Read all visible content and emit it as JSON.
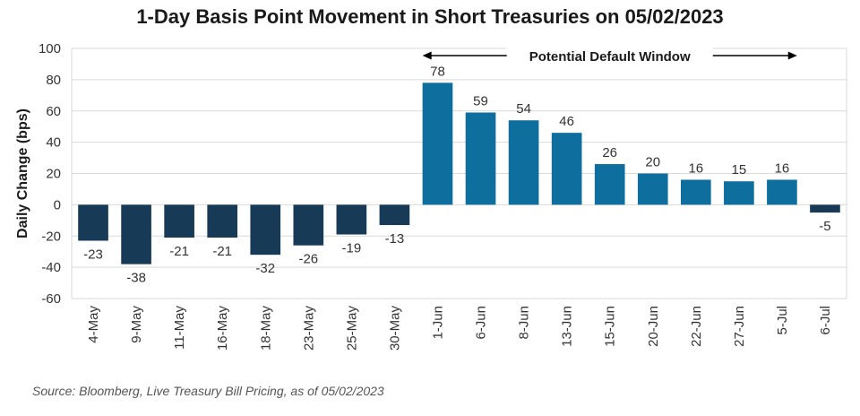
{
  "chart_data": {
    "type": "bar",
    "title": "1-Day Basis Point Movement in Short Treasuries on 05/02/2023",
    "xlabel": "",
    "ylabel": "Daily Change (bps)",
    "ylim": [
      -60,
      100
    ],
    "yticks": [
      100,
      80,
      60,
      40,
      20,
      0,
      -20,
      -40,
      -60
    ],
    "grid": true,
    "categories": [
      "4-May",
      "9-May",
      "11-May",
      "16-May",
      "18-May",
      "23-May",
      "25-May",
      "30-May",
      "1-Jun",
      "6-Jun",
      "8-Jun",
      "13-Jun",
      "15-Jun",
      "20-Jun",
      "22-Jun",
      "27-Jun",
      "5-Jul",
      "6-Jul"
    ],
    "values": [
      -23,
      -38,
      -21,
      -21,
      -32,
      -26,
      -19,
      -13,
      78,
      59,
      54,
      46,
      26,
      20,
      16,
      15,
      16,
      -5
    ],
    "colors": {
      "outside_window": "#173a56",
      "default_window": "#0e6e9e",
      "grid": "#d9d9d9"
    },
    "annotation": {
      "text": "Potential Default Window",
      "from": "1-Jun",
      "to": "5-Jul"
    },
    "source": "Source: Bloomberg, Live Treasury Bill Pricing, as of 05/02/2023"
  }
}
